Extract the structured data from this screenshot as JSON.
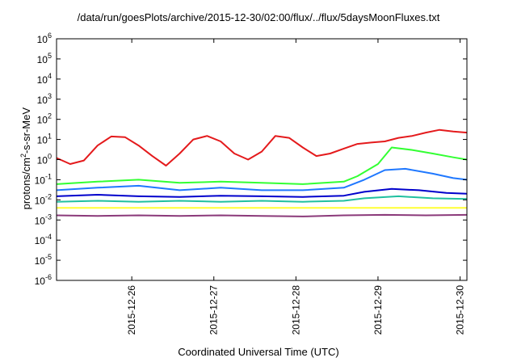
{
  "chart_data": {
    "type": "line",
    "title": "/data/run/goesPlots/archive/2015-12-30/02:00/flux/../flux/5daysMoonFluxes.txt",
    "xlabel": "Coordinated Universal Time (UTC)",
    "ylabel": {
      "before": "protons/cm",
      "sup": "2",
      "after": "-s-sr-MeV"
    },
    "yscale": "log",
    "ylim": [
      1e-06,
      1000000.0
    ],
    "yticks": [
      {
        "base": "10",
        "exp": "-6"
      },
      {
        "base": "10",
        "exp": "-5"
      },
      {
        "base": "10",
        "exp": "-4"
      },
      {
        "base": "10",
        "exp": "-3"
      },
      {
        "base": "10",
        "exp": "-2"
      },
      {
        "base": "10",
        "exp": "-1"
      },
      {
        "base": "10",
        "exp": "0"
      },
      {
        "base": "10",
        "exp": "1"
      },
      {
        "base": "10",
        "exp": "2"
      },
      {
        "base": "10",
        "exp": "3"
      },
      {
        "base": "10",
        "exp": "4"
      },
      {
        "base": "10",
        "exp": "5"
      },
      {
        "base": "10",
        "exp": "6"
      }
    ],
    "xlim": [
      "2015-12-25 02:00",
      "2015-12-30 02:00"
    ],
    "xtick_labels": [
      "2015-12-26",
      "2015-12-27",
      "2015-12-28",
      "2015-12-29",
      "2015-12-30"
    ],
    "grid": false,
    "series": [
      {
        "color": "#e41a1c",
        "x": [
          "12-25 02:00",
          "12-25 06:00",
          "12-25 10:00",
          "12-25 14:00",
          "12-25 18:00",
          "12-25 22:00",
          "12-26 02:00",
          "12-26 06:00",
          "12-26 10:00",
          "12-26 14:00",
          "12-26 18:00",
          "12-26 22:00",
          "12-27 02:00",
          "12-27 06:00",
          "12-27 10:00",
          "12-27 14:00",
          "12-27 18:00",
          "12-27 22:00",
          "12-28 02:00",
          "12-28 06:00",
          "12-28 10:00",
          "12-28 14:00",
          "12-28 18:00",
          "12-28 22:00",
          "12-29 02:00",
          "12-29 06:00",
          "12-29 10:00",
          "12-29 14:00",
          "12-29 18:00",
          "12-29 22:00",
          "12-30 02:00"
        ],
        "y": [
          1.2,
          0.6,
          0.9,
          5,
          14,
          13,
          5,
          1.5,
          0.5,
          2,
          10,
          15,
          8,
          2,
          1,
          2.5,
          15,
          12,
          4,
          1.5,
          2,
          3.5,
          6,
          7,
          8,
          12,
          15,
          22,
          30,
          25,
          22
        ]
      },
      {
        "color": "#33ff33",
        "x": [
          "12-25 02:00",
          "12-25 14:00",
          "12-26 02:00",
          "12-26 14:00",
          "12-27 02:00",
          "12-27 14:00",
          "12-28 02:00",
          "12-28 14:00",
          "12-28 18:00",
          "12-29 00:00",
          "12-29 04:00",
          "12-29 10:00",
          "12-29 16:00",
          "12-29 22:00",
          "12-30 02:00"
        ],
        "y": [
          0.06,
          0.08,
          0.1,
          0.07,
          0.08,
          0.07,
          0.06,
          0.08,
          0.15,
          0.6,
          4,
          3,
          2,
          1.3,
          1
        ]
      },
      {
        "color": "#1f78ff",
        "x": [
          "12-25 02:00",
          "12-25 14:00",
          "12-26 02:00",
          "12-26 14:00",
          "12-27 02:00",
          "12-27 14:00",
          "12-28 02:00",
          "12-28 14:00",
          "12-28 20:00",
          "12-29 02:00",
          "12-29 08:00",
          "12-29 16:00",
          "12-29 22:00",
          "12-30 02:00"
        ],
        "y": [
          0.03,
          0.04,
          0.05,
          0.03,
          0.04,
          0.03,
          0.03,
          0.04,
          0.1,
          0.3,
          0.35,
          0.2,
          0.12,
          0.1
        ]
      },
      {
        "color": "#0000cc",
        "x": [
          "12-25 02:00",
          "12-25 14:00",
          "12-26 02:00",
          "12-26 14:00",
          "12-27 02:00",
          "12-27 14:00",
          "12-28 02:00",
          "12-28 14:00",
          "12-28 20:00",
          "12-29 04:00",
          "12-29 12:00",
          "12-29 20:00",
          "12-30 02:00"
        ],
        "y": [
          0.015,
          0.018,
          0.015,
          0.014,
          0.016,
          0.015,
          0.014,
          0.016,
          0.025,
          0.035,
          0.03,
          0.022,
          0.02
        ]
      },
      {
        "color": "#20c0a0",
        "x": [
          "12-25 02:00",
          "12-25 14:00",
          "12-26 02:00",
          "12-26 14:00",
          "12-27 02:00",
          "12-27 14:00",
          "12-28 02:00",
          "12-28 14:00",
          "12-28 20:00",
          "12-29 06:00",
          "12-29 16:00",
          "12-30 02:00"
        ],
        "y": [
          0.008,
          0.009,
          0.008,
          0.009,
          0.008,
          0.009,
          0.008,
          0.009,
          0.012,
          0.015,
          0.012,
          0.011
        ]
      },
      {
        "color": "#ffff33",
        "x": [
          "12-25 02:00",
          "12-26 02:00",
          "12-27 02:00",
          "12-28 02:00",
          "12-29 02:00",
          "12-30 02:00"
        ],
        "y": [
          0.004,
          0.004,
          0.004,
          0.004,
          0.004,
          0.004
        ]
      },
      {
        "color": "#8b3a7a",
        "x": [
          "12-25 02:00",
          "12-25 14:00",
          "12-26 02:00",
          "12-26 14:00",
          "12-27 02:00",
          "12-27 14:00",
          "12-28 02:00",
          "12-28 14:00",
          "12-29 02:00",
          "12-29 14:00",
          "12-30 02:00"
        ],
        "y": [
          0.0017,
          0.0016,
          0.0017,
          0.0016,
          0.0017,
          0.0016,
          0.0015,
          0.0017,
          0.0018,
          0.0017,
          0.0018
        ]
      }
    ]
  }
}
